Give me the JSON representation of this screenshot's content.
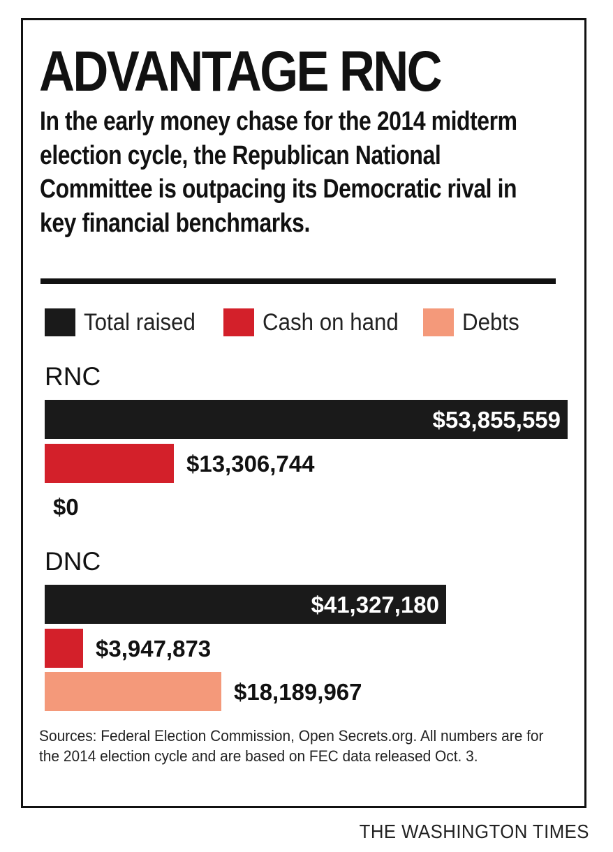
{
  "chart_data": {
    "type": "bar",
    "orientation": "horizontal",
    "title": "ADVANTAGE RNC",
    "subtitle": "In the early money chase for the 2014 midterm election cycle, the Republican National Committee is outpacing its Democratic rival in key financial benchmarks.",
    "categories": [
      "RNC",
      "DNC"
    ],
    "series": [
      {
        "name": "Total raised",
        "color": "#1a1a1a",
        "values": [
          53855559,
          41327180
        ],
        "labels": [
          "$53,855,559",
          "$41,327,180"
        ]
      },
      {
        "name": "Cash on hand",
        "color": "#d3202a",
        "values": [
          13306744,
          3947873
        ],
        "labels": [
          "$13,306,744",
          "$3,947,873"
        ]
      },
      {
        "name": "Debts",
        "color": "#f4997a",
        "values": [
          0,
          18189967
        ],
        "labels": [
          "$0",
          "$18,189,967"
        ]
      }
    ],
    "legend_position": "top",
    "grid": false
  },
  "footer": {
    "source": "Sources: Federal Election Commission, Open Secrets.org. All numbers are for the 2014 election cycle and are based on FEC data released Oct. 3.",
    "credit": "THE WASHINGTON TIMES"
  }
}
